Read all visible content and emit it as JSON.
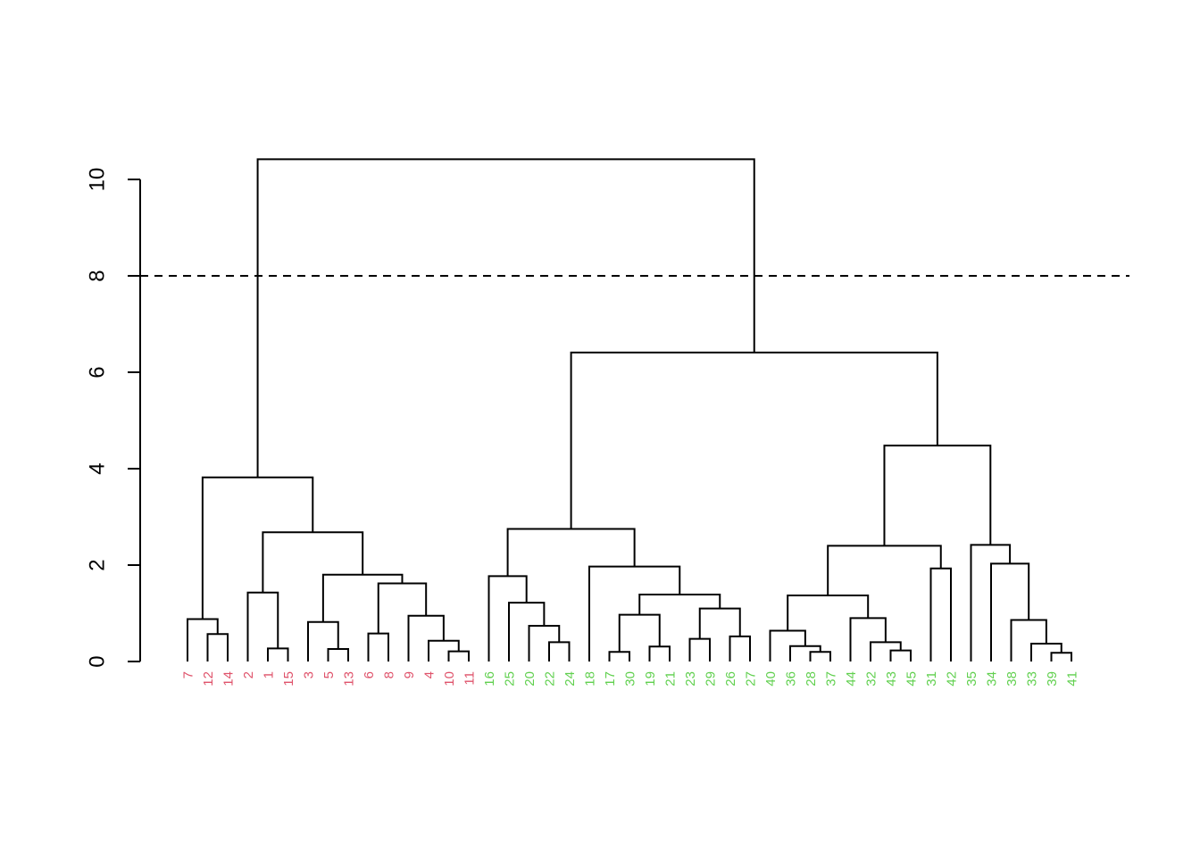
{
  "chart_data": {
    "type": "dendrogram",
    "title": "",
    "xlabel": "",
    "ylabel": "",
    "ylim": [
      0,
      10.4
    ],
    "yticks": [
      "0",
      "2",
      "4",
      "6",
      "8",
      "10"
    ],
    "ytick_values": [
      0,
      2,
      4,
      6,
      8,
      10
    ],
    "cut_height": 8,
    "colors": {
      "group1": "#DF536B",
      "group2": "#61D04F"
    },
    "leaves": [
      {
        "label": "7",
        "group": 1
      },
      {
        "label": "12",
        "group": 1
      },
      {
        "label": "14",
        "group": 1
      },
      {
        "label": "2",
        "group": 1
      },
      {
        "label": "1",
        "group": 1
      },
      {
        "label": "15",
        "group": 1
      },
      {
        "label": "3",
        "group": 1
      },
      {
        "label": "5",
        "group": 1
      },
      {
        "label": "13",
        "group": 1
      },
      {
        "label": "6",
        "group": 1
      },
      {
        "label": "8",
        "group": 1
      },
      {
        "label": "9",
        "group": 1
      },
      {
        "label": "4",
        "group": 1
      },
      {
        "label": "10",
        "group": 1
      },
      {
        "label": "11",
        "group": 1
      },
      {
        "label": "16",
        "group": 2
      },
      {
        "label": "25",
        "group": 2
      },
      {
        "label": "20",
        "group": 2
      },
      {
        "label": "22",
        "group": 2
      },
      {
        "label": "24",
        "group": 2
      },
      {
        "label": "18",
        "group": 2
      },
      {
        "label": "17",
        "group": 2
      },
      {
        "label": "30",
        "group": 2
      },
      {
        "label": "19",
        "group": 2
      },
      {
        "label": "21",
        "group": 2
      },
      {
        "label": "23",
        "group": 2
      },
      {
        "label": "29",
        "group": 2
      },
      {
        "label": "26",
        "group": 2
      },
      {
        "label": "27",
        "group": 2
      },
      {
        "label": "40",
        "group": 2
      },
      {
        "label": "36",
        "group": 2
      },
      {
        "label": "28",
        "group": 2
      },
      {
        "label": "37",
        "group": 2
      },
      {
        "label": "44",
        "group": 2
      },
      {
        "label": "32",
        "group": 2
      },
      {
        "label": "43",
        "group": 2
      },
      {
        "label": "45",
        "group": 2
      },
      {
        "label": "31",
        "group": 2
      },
      {
        "label": "42",
        "group": 2
      },
      {
        "label": "35",
        "group": 2
      },
      {
        "label": "34",
        "group": 2
      },
      {
        "label": "38",
        "group": 2
      },
      {
        "label": "33",
        "group": 2
      },
      {
        "label": "39",
        "group": 2
      },
      {
        "label": "41",
        "group": 2
      }
    ],
    "merges": [
      {
        "left": "L1",
        "right": "L2",
        "height": 0.57
      },
      {
        "left": "L0",
        "right": "m0",
        "height": 0.88
      },
      {
        "left": "L4",
        "right": "L5",
        "height": 0.27
      },
      {
        "left": "L3",
        "right": "m2",
        "height": 1.43
      },
      {
        "left": "L7",
        "right": "L8",
        "height": 0.26
      },
      {
        "left": "L6",
        "right": "m4",
        "height": 0.82
      },
      {
        "left": "L9",
        "right": "L10",
        "height": 0.58
      },
      {
        "left": "L13",
        "right": "L14",
        "height": 0.21
      },
      {
        "left": "L12",
        "right": "m7",
        "height": 0.43
      },
      {
        "left": "L11",
        "right": "m8",
        "height": 0.95
      },
      {
        "left": "m6",
        "right": "m9",
        "height": 1.62
      },
      {
        "left": "m5",
        "right": "m10",
        "height": 1.8
      },
      {
        "left": "m3",
        "right": "m11",
        "height": 2.68
      },
      {
        "left": "m1",
        "right": "m12",
        "height": 3.82
      },
      {
        "left": "L18",
        "right": "L19",
        "height": 0.4
      },
      {
        "left": "L17",
        "right": "m14",
        "height": 0.74
      },
      {
        "left": "L16",
        "right": "m15",
        "height": 1.22
      },
      {
        "left": "L15",
        "right": "m16",
        "height": 1.77
      },
      {
        "left": "L21",
        "right": "L22",
        "height": 0.2
      },
      {
        "left": "L23",
        "right": "L24",
        "height": 0.31
      },
      {
        "left": "m18",
        "right": "m19",
        "height": 0.97
      },
      {
        "left": "L25",
        "right": "L26",
        "height": 0.47
      },
      {
        "left": "L27",
        "right": "L28",
        "height": 0.52
      },
      {
        "left": "m21",
        "right": "m22",
        "height": 1.1
      },
      {
        "left": "m20",
        "right": "m23",
        "height": 1.39
      },
      {
        "left": "L20",
        "right": "m24",
        "height": 1.97
      },
      {
        "left": "m17",
        "right": "m25",
        "height": 2.75
      },
      {
        "left": "L31",
        "right": "L32",
        "height": 0.2
      },
      {
        "left": "L30",
        "right": "m27",
        "height": 0.32
      },
      {
        "left": "L29",
        "right": "m28",
        "height": 0.64
      },
      {
        "left": "L35",
        "right": "L36",
        "height": 0.23
      },
      {
        "left": "L34",
        "right": "m30",
        "height": 0.4
      },
      {
        "left": "L33",
        "right": "m31",
        "height": 0.9
      },
      {
        "left": "m29",
        "right": "m32",
        "height": 1.37
      },
      {
        "left": "L37",
        "right": "L38",
        "height": 1.93
      },
      {
        "left": "m33",
        "right": "m34",
        "height": 2.4
      },
      {
        "left": "L43",
        "right": "L44",
        "height": 0.18
      },
      {
        "left": "L42",
        "right": "m36",
        "height": 0.37
      },
      {
        "left": "L41",
        "right": "m37",
        "height": 0.86
      },
      {
        "left": "L40",
        "right": "m38",
        "height": 2.03
      },
      {
        "left": "L39",
        "right": "m39",
        "height": 2.42
      },
      {
        "left": "m35",
        "right": "m40",
        "height": 4.48
      },
      {
        "left": "m26",
        "right": "m41",
        "height": 6.41
      },
      {
        "left": "m13",
        "right": "m42",
        "height": 10.42
      }
    ]
  }
}
